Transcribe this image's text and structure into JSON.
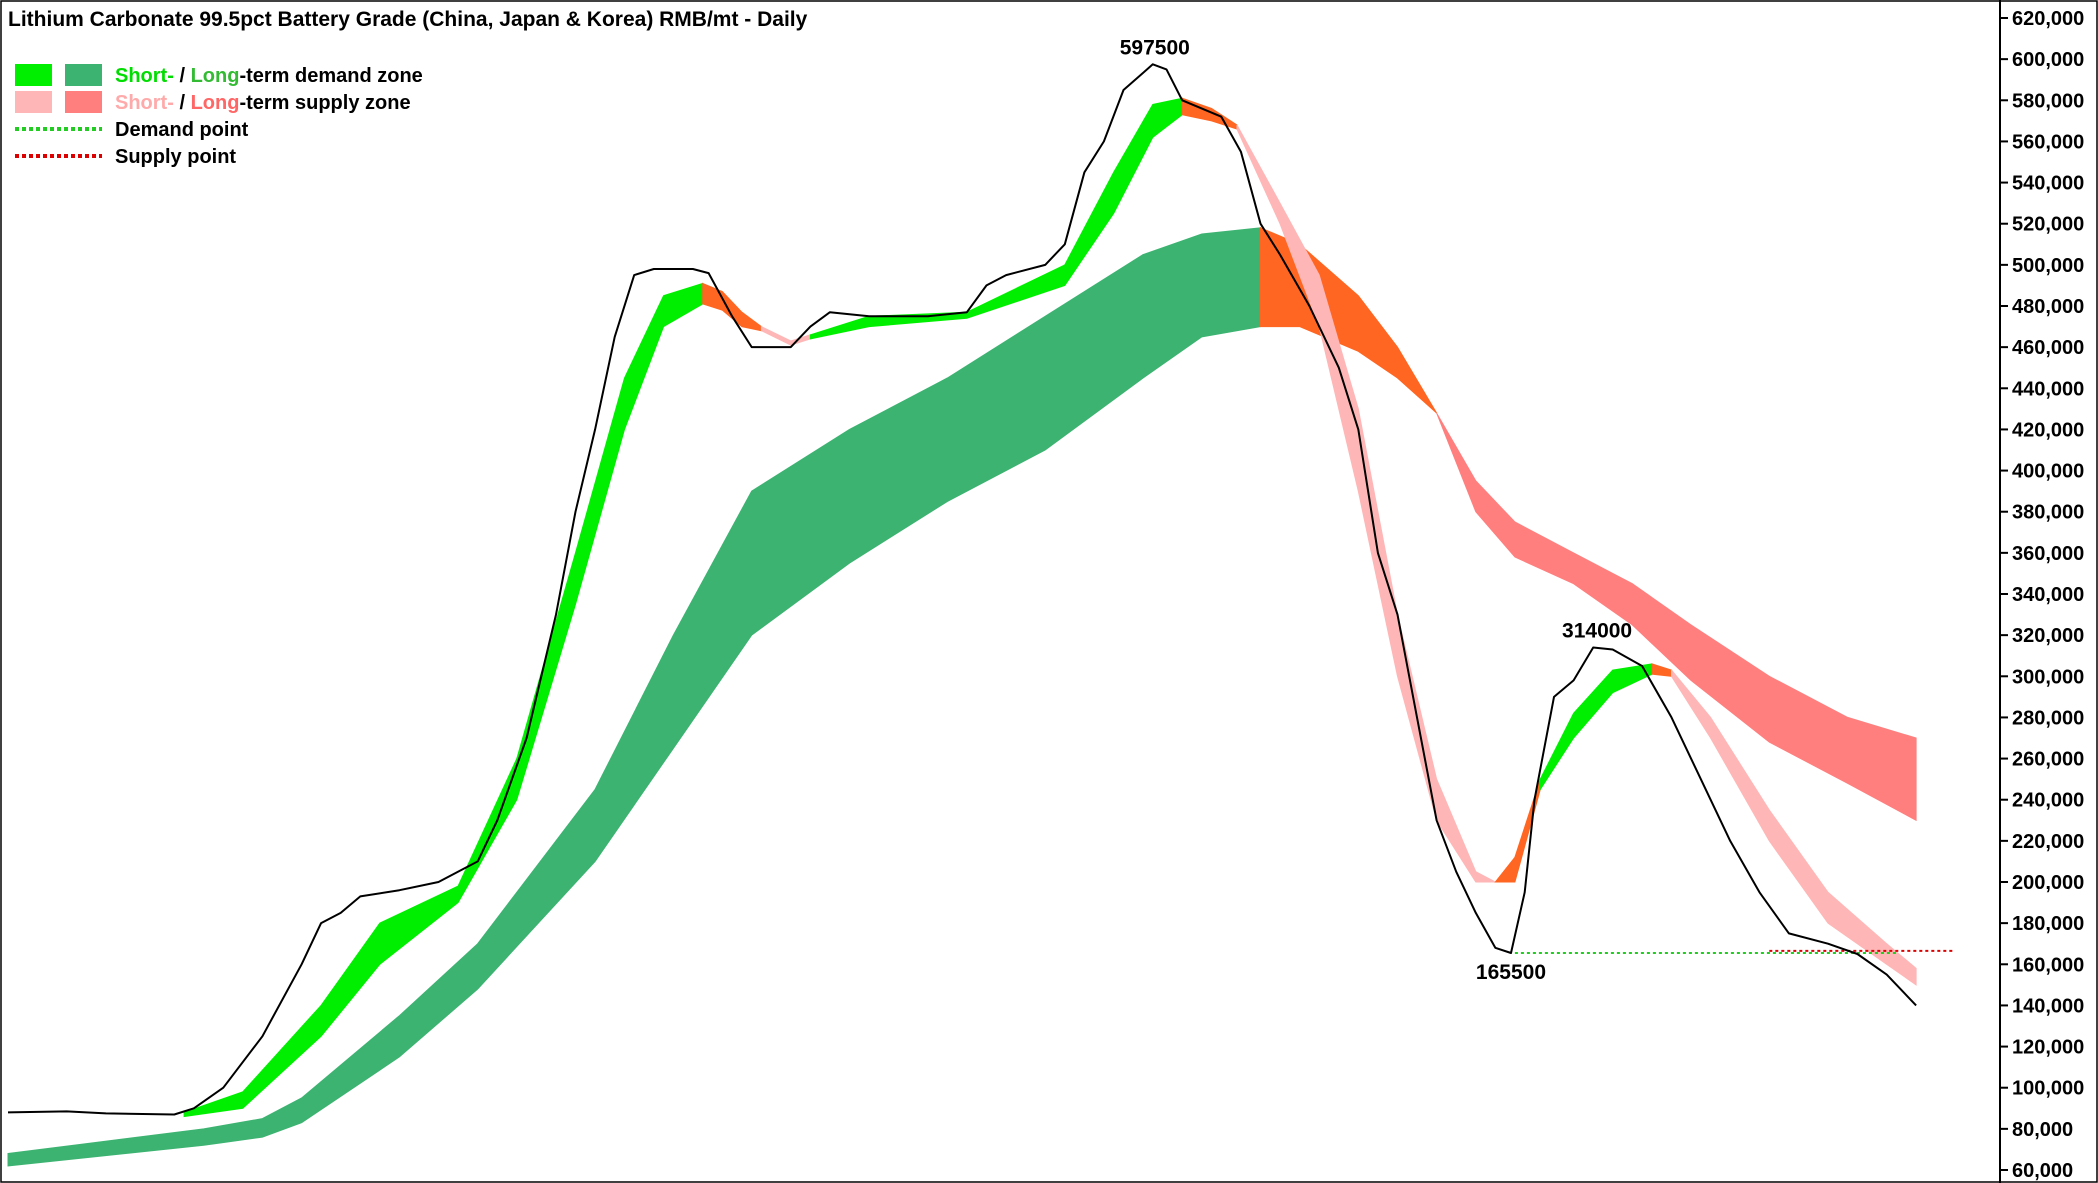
{
  "chart_data": {
    "type": "line",
    "title": "Lithium Carbonate 99.5pct Battery Grade (China, Japan & Korea) RMB/mt - Daily",
    "ylim": [
      55000,
      625000
    ],
    "y_ticks": [
      60000,
      80000,
      100000,
      120000,
      140000,
      160000,
      180000,
      200000,
      220000,
      240000,
      260000,
      280000,
      300000,
      320000,
      340000,
      360000,
      380000,
      400000,
      420000,
      440000,
      460000,
      480000,
      500000,
      520000,
      540000,
      560000,
      580000,
      600000,
      620000
    ],
    "y_tick_labels": [
      "60,000",
      "80,000",
      "100,000",
      "120,000",
      "140,000",
      "160,000",
      "180,000",
      "200,000",
      "220,000",
      "240,000",
      "260,000",
      "280,000",
      "300,000",
      "320,000",
      "340,000",
      "360,000",
      "380,000",
      "400,000",
      "420,000",
      "440,000",
      "460,000",
      "480,000",
      "500,000",
      "520,000",
      "540,000",
      "560,000",
      "580,000",
      "600,000",
      "620,000"
    ],
    "grid": false,
    "legend_position": "top-left",
    "colors": {
      "short_demand": "#00ee00",
      "long_demand": "#3cb371",
      "short_supply": "#ffb6b6",
      "long_supply": "#ff7f7f",
      "transition": "#ff6622",
      "demand_point": "#22cc22",
      "supply_point": "#dd0000",
      "price": "#000000"
    },
    "legend": [
      {
        "swatches": [
          "short_demand",
          "long_demand"
        ],
        "parts": [
          {
            "text": "Short-",
            "color": "#00dd00"
          },
          {
            "text": " / ",
            "color": "#000000"
          },
          {
            "text": "Long",
            "color": "#33bb33"
          },
          {
            "text": "-term demand zone",
            "color": "#000000"
          }
        ]
      },
      {
        "swatches": [
          "short_supply",
          "long_supply"
        ],
        "parts": [
          {
            "text": "Short-",
            "color": "#ffaaaa"
          },
          {
            "text": " / ",
            "color": "#000000"
          },
          {
            "text": "Long",
            "color": "#ff6666"
          },
          {
            "text": "-term supply zone",
            "color": "#000000"
          }
        ]
      },
      {
        "line": "demand_point",
        "parts": [
          {
            "text": "Demand point",
            "color": "#000000"
          }
        ]
      },
      {
        "line": "supply_point",
        "parts": [
          {
            "text": "Supply point",
            "color": "#000000"
          }
        ]
      }
    ],
    "annotations": [
      {
        "label": "597500",
        "value": 597500,
        "t": 0.586,
        "pos": "above"
      },
      {
        "label": "314000",
        "value": 314000,
        "t": 0.812,
        "pos": "above"
      },
      {
        "label": "165500",
        "value": 165500,
        "t": 0.768,
        "pos": "below"
      }
    ],
    "price_series": [
      [
        0.0,
        88000
      ],
      [
        0.03,
        88500
      ],
      [
        0.05,
        87500
      ],
      [
        0.085,
        87000
      ],
      [
        0.095,
        90000
      ],
      [
        0.11,
        100000
      ],
      [
        0.13,
        125000
      ],
      [
        0.15,
        160000
      ],
      [
        0.16,
        180000
      ],
      [
        0.17,
        185000
      ],
      [
        0.18,
        193000
      ],
      [
        0.2,
        196000
      ],
      [
        0.22,
        200000
      ],
      [
        0.24,
        210000
      ],
      [
        0.25,
        230000
      ],
      [
        0.265,
        270000
      ],
      [
        0.28,
        330000
      ],
      [
        0.29,
        380000
      ],
      [
        0.3,
        420000
      ],
      [
        0.31,
        465000
      ],
      [
        0.32,
        495000
      ],
      [
        0.33,
        498000
      ],
      [
        0.35,
        498000
      ],
      [
        0.358,
        496000
      ],
      [
        0.37,
        475000
      ],
      [
        0.38,
        460000
      ],
      [
        0.4,
        460000
      ],
      [
        0.41,
        470000
      ],
      [
        0.42,
        477000
      ],
      [
        0.44,
        475000
      ],
      [
        0.47,
        475000
      ],
      [
        0.49,
        477000
      ],
      [
        0.5,
        490000
      ],
      [
        0.51,
        495000
      ],
      [
        0.53,
        500000
      ],
      [
        0.54,
        510000
      ],
      [
        0.55,
        545000
      ],
      [
        0.56,
        560000
      ],
      [
        0.57,
        585000
      ],
      [
        0.585,
        597500
      ],
      [
        0.592,
        595000
      ],
      [
        0.6,
        580000
      ],
      [
        0.62,
        572000
      ],
      [
        0.63,
        555000
      ],
      [
        0.64,
        520000
      ],
      [
        0.65,
        505000
      ],
      [
        0.665,
        480000
      ],
      [
        0.68,
        450000
      ],
      [
        0.69,
        420000
      ],
      [
        0.7,
        360000
      ],
      [
        0.71,
        330000
      ],
      [
        0.72,
        280000
      ],
      [
        0.73,
        230000
      ],
      [
        0.74,
        205000
      ],
      [
        0.75,
        185000
      ],
      [
        0.76,
        168000
      ],
      [
        0.768,
        165500
      ],
      [
        0.775,
        195000
      ],
      [
        0.78,
        240000
      ],
      [
        0.79,
        290000
      ],
      [
        0.8,
        298000
      ],
      [
        0.81,
        314000
      ],
      [
        0.82,
        313000
      ],
      [
        0.835,
        305000
      ],
      [
        0.85,
        280000
      ],
      [
        0.865,
        250000
      ],
      [
        0.88,
        220000
      ],
      [
        0.895,
        195000
      ],
      [
        0.91,
        175000
      ],
      [
        0.93,
        170000
      ],
      [
        0.945,
        165000
      ],
      [
        0.96,
        155000
      ],
      [
        0.975,
        140000
      ]
    ],
    "bands": [
      {
        "fill": "long_demand",
        "upper": [
          [
            0.0,
            68000
          ],
          [
            0.1,
            80000
          ],
          [
            0.13,
            85000
          ],
          [
            0.15,
            95000
          ],
          [
            0.2,
            135000
          ],
          [
            0.24,
            170000
          ],
          [
            0.3,
            245000
          ],
          [
            0.34,
            320000
          ],
          [
            0.38,
            390000
          ],
          [
            0.43,
            420000
          ],
          [
            0.48,
            445000
          ],
          [
            0.53,
            475000
          ],
          [
            0.58,
            505000
          ],
          [
            0.61,
            515000
          ],
          [
            0.64,
            518000
          ]
        ],
        "lower": [
          [
            0.0,
            62000
          ],
          [
            0.1,
            72000
          ],
          [
            0.13,
            76000
          ],
          [
            0.15,
            83000
          ],
          [
            0.2,
            115000
          ],
          [
            0.24,
            148000
          ],
          [
            0.3,
            210000
          ],
          [
            0.34,
            265000
          ],
          [
            0.38,
            320000
          ],
          [
            0.43,
            355000
          ],
          [
            0.48,
            385000
          ],
          [
            0.53,
            410000
          ],
          [
            0.58,
            445000
          ],
          [
            0.61,
            465000
          ],
          [
            0.64,
            470000
          ]
        ]
      },
      {
        "fill": "transition",
        "upper": [
          [
            0.64,
            518000
          ],
          [
            0.66,
            510000
          ],
          [
            0.69,
            485000
          ],
          [
            0.71,
            460000
          ],
          [
            0.73,
            428000
          ]
        ],
        "lower": [
          [
            0.64,
            470000
          ],
          [
            0.66,
            470000
          ],
          [
            0.69,
            458000
          ],
          [
            0.71,
            445000
          ],
          [
            0.73,
            428000
          ]
        ]
      },
      {
        "fill": "long_supply",
        "upper": [
          [
            0.73,
            428000
          ],
          [
            0.75,
            395000
          ],
          [
            0.77,
            375000
          ],
          [
            0.8,
            360000
          ],
          [
            0.83,
            345000
          ],
          [
            0.86,
            325000
          ],
          [
            0.9,
            300000
          ],
          [
            0.94,
            280000
          ],
          [
            0.975,
            270000
          ]
        ],
        "lower": [
          [
            0.73,
            428000
          ],
          [
            0.75,
            380000
          ],
          [
            0.77,
            358000
          ],
          [
            0.8,
            345000
          ],
          [
            0.83,
            325000
          ],
          [
            0.86,
            298000
          ],
          [
            0.9,
            268000
          ],
          [
            0.94,
            248000
          ],
          [
            0.975,
            230000
          ]
        ]
      },
      {
        "fill": "short_demand",
        "upper": [
          [
            0.09,
            88000
          ],
          [
            0.12,
            98000
          ],
          [
            0.16,
            140000
          ],
          [
            0.19,
            180000
          ],
          [
            0.23,
            198000
          ],
          [
            0.26,
            260000
          ],
          [
            0.29,
            360000
          ],
          [
            0.315,
            445000
          ],
          [
            0.335,
            485000
          ],
          [
            0.355,
            491000
          ]
        ],
        "lower": [
          [
            0.09,
            86000
          ],
          [
            0.12,
            90000
          ],
          [
            0.16,
            125000
          ],
          [
            0.19,
            160000
          ],
          [
            0.23,
            190000
          ],
          [
            0.26,
            240000
          ],
          [
            0.29,
            335000
          ],
          [
            0.315,
            420000
          ],
          [
            0.335,
            470000
          ],
          [
            0.355,
            481000
          ]
        ]
      },
      {
        "fill": "transition",
        "upper": [
          [
            0.355,
            491000
          ],
          [
            0.365,
            487000
          ],
          [
            0.375,
            477000
          ],
          [
            0.385,
            470000
          ]
        ],
        "lower": [
          [
            0.355,
            481000
          ],
          [
            0.365,
            478000
          ],
          [
            0.375,
            470000
          ],
          [
            0.385,
            468000
          ]
        ]
      },
      {
        "fill": "short_supply",
        "upper": [
          [
            0.385,
            470000
          ],
          [
            0.4,
            463000
          ],
          [
            0.41,
            466000
          ]
        ],
        "lower": [
          [
            0.385,
            468000
          ],
          [
            0.4,
            461000
          ],
          [
            0.41,
            464000
          ]
        ]
      },
      {
        "fill": "short_demand",
        "upper": [
          [
            0.41,
            466000
          ],
          [
            0.44,
            475000
          ],
          [
            0.49,
            477000
          ],
          [
            0.54,
            500000
          ],
          [
            0.565,
            545000
          ],
          [
            0.585,
            578000
          ],
          [
            0.6,
            581000
          ]
        ],
        "lower": [
          [
            0.41,
            464000
          ],
          [
            0.44,
            470000
          ],
          [
            0.49,
            474000
          ],
          [
            0.54,
            490000
          ],
          [
            0.565,
            525000
          ],
          [
            0.585,
            562000
          ],
          [
            0.6,
            573000
          ]
        ]
      },
      {
        "fill": "transition",
        "upper": [
          [
            0.6,
            581000
          ],
          [
            0.615,
            576000
          ],
          [
            0.628,
            568000
          ]
        ],
        "lower": [
          [
            0.6,
            573000
          ],
          [
            0.615,
            570000
          ],
          [
            0.628,
            566000
          ]
        ]
      },
      {
        "fill": "short_supply",
        "upper": [
          [
            0.628,
            568000
          ],
          [
            0.65,
            530000
          ],
          [
            0.67,
            495000
          ],
          [
            0.69,
            430000
          ],
          [
            0.71,
            330000
          ],
          [
            0.73,
            250000
          ],
          [
            0.75,
            205000
          ],
          [
            0.76,
            200000
          ]
        ],
        "lower": [
          [
            0.628,
            566000
          ],
          [
            0.65,
            520000
          ],
          [
            0.67,
            470000
          ],
          [
            0.69,
            390000
          ],
          [
            0.71,
            300000
          ],
          [
            0.73,
            230000
          ],
          [
            0.75,
            200000
          ],
          [
            0.76,
            200000
          ]
        ]
      },
      {
        "fill": "transition",
        "upper": [
          [
            0.76,
            200000
          ],
          [
            0.77,
            212000
          ],
          [
            0.783,
            250000
          ]
        ],
        "lower": [
          [
            0.76,
            200000
          ],
          [
            0.77,
            200000
          ],
          [
            0.783,
            245000
          ]
        ]
      },
      {
        "fill": "short_demand",
        "upper": [
          [
            0.783,
            250000
          ],
          [
            0.8,
            282000
          ],
          [
            0.82,
            303000
          ],
          [
            0.84,
            306000
          ]
        ],
        "lower": [
          [
            0.783,
            245000
          ],
          [
            0.8,
            270000
          ],
          [
            0.82,
            292000
          ],
          [
            0.84,
            301000
          ]
        ]
      },
      {
        "fill": "transition",
        "upper": [
          [
            0.84,
            306000
          ],
          [
            0.85,
            303000
          ]
        ],
        "lower": [
          [
            0.84,
            301000
          ],
          [
            0.85,
            300000
          ]
        ]
      },
      {
        "fill": "short_supply",
        "upper": [
          [
            0.85,
            303000
          ],
          [
            0.87,
            280000
          ],
          [
            0.9,
            235000
          ],
          [
            0.93,
            195000
          ],
          [
            0.96,
            170000
          ],
          [
            0.975,
            158000
          ]
        ],
        "lower": [
          [
            0.85,
            300000
          ],
          [
            0.87,
            270000
          ],
          [
            0.9,
            220000
          ],
          [
            0.93,
            180000
          ],
          [
            0.96,
            160000
          ],
          [
            0.975,
            150000
          ]
        ]
      }
    ],
    "demand_point_line": {
      "value": 165500,
      "t_start": 0.77,
      "t_end": 0.965
    },
    "supply_point_line": {
      "value": 166500,
      "t_start": 0.9,
      "t_end": 0.995
    }
  }
}
